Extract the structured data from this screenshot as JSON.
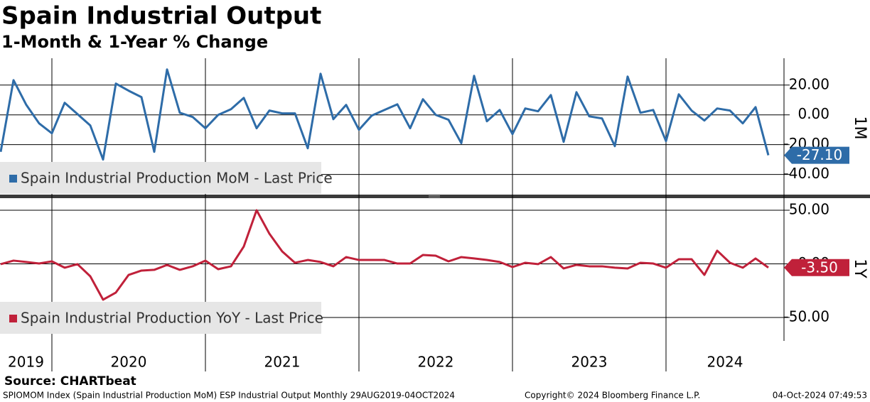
{
  "title": "Spain Industrial Output",
  "subtitle": "1-Month & 1-Year % Change",
  "source": "Source: CHARTbeat",
  "footer": {
    "left": "SPIOMOM Index (Spain Industrial Production MoM) ESP Industrial Output  Monthly 29AUG2019-04OCT2024",
    "center": "Copyright© 2024 Bloomberg Finance L.P.",
    "right": "04-Oct-2024 07:49:53"
  },
  "chart_data": [
    {
      "type": "line",
      "panel_label": "1M",
      "x": [
        "2019-08",
        "2019-09",
        "2019-10",
        "2019-11",
        "2019-12",
        "2020-01",
        "2020-02",
        "2020-03",
        "2020-04",
        "2020-05",
        "2020-06",
        "2020-07",
        "2020-08",
        "2020-09",
        "2020-10",
        "2020-11",
        "2020-12",
        "2021-01",
        "2021-02",
        "2021-03",
        "2021-04",
        "2021-05",
        "2021-06",
        "2021-07",
        "2021-08",
        "2021-09",
        "2021-10",
        "2021-11",
        "2021-12",
        "2022-01",
        "2022-02",
        "2022-03",
        "2022-04",
        "2022-05",
        "2022-06",
        "2022-07",
        "2022-08",
        "2022-09",
        "2022-10",
        "2022-11",
        "2022-12",
        "2023-01",
        "2023-02",
        "2023-03",
        "2023-04",
        "2023-05",
        "2023-06",
        "2023-07",
        "2023-08",
        "2023-09",
        "2023-10",
        "2023-11",
        "2023-12",
        "2024-01",
        "2024-02",
        "2024-03",
        "2024-04",
        "2024-05",
        "2024-06",
        "2024-07",
        "2024-08"
      ],
      "series": [
        {
          "name": "Spain Industrial Production MoM - Last Price",
          "color": "#2e6ca8",
          "last_label": "-27.10",
          "values": [
            -24.8,
            23.3,
            6.7,
            -5.7,
            -12.4,
            8.1,
            0.5,
            -7.1,
            -30,
            21,
            16.2,
            11.9,
            -24.8,
            30.5,
            1.4,
            -1.4,
            -9,
            0,
            3.8,
            11.4,
            -9,
            2.9,
            1,
            1,
            -22.4,
            27.6,
            -2.9,
            6.7,
            -10,
            -0.5,
            3.3,
            7.1,
            -9,
            10.5,
            0,
            -3.3,
            -19,
            26.2,
            -4.3,
            3.3,
            -12.9,
            4.3,
            2.4,
            13.3,
            -18.1,
            15.2,
            -1,
            -2.4,
            -21,
            25.7,
            1.4,
            3.3,
            -17.6,
            13.8,
            2.9,
            -3.8,
            4.3,
            2.9,
            -5.7,
            5.2,
            -27.1
          ]
        }
      ],
      "ylim": [
        -54,
        38
      ],
      "yticks": [
        {
          "value": 20,
          "label": "20.00"
        },
        {
          "value": 0,
          "label": "0.00"
        },
        {
          "value": -20,
          "label": "-20.00"
        },
        {
          "value": -40,
          "label": "-40.00"
        }
      ],
      "grid": true
    },
    {
      "type": "line",
      "panel_label": "1Y",
      "x": [
        "2019-08",
        "2019-09",
        "2019-10",
        "2019-11",
        "2019-12",
        "2020-01",
        "2020-02",
        "2020-03",
        "2020-04",
        "2020-05",
        "2020-06",
        "2020-07",
        "2020-08",
        "2020-09",
        "2020-10",
        "2020-11",
        "2020-12",
        "2021-01",
        "2021-02",
        "2021-03",
        "2021-04",
        "2021-05",
        "2021-06",
        "2021-07",
        "2021-08",
        "2021-09",
        "2021-10",
        "2021-11",
        "2021-12",
        "2022-01",
        "2022-02",
        "2022-03",
        "2022-04",
        "2022-05",
        "2022-06",
        "2022-07",
        "2022-08",
        "2022-09",
        "2022-10",
        "2022-11",
        "2022-12",
        "2023-01",
        "2023-02",
        "2023-03",
        "2023-04",
        "2023-05",
        "2023-06",
        "2023-07",
        "2023-08",
        "2023-09",
        "2023-10",
        "2023-11",
        "2023-12",
        "2024-01",
        "2024-02",
        "2024-03",
        "2024-04",
        "2024-05",
        "2024-06",
        "2024-07",
        "2024-08"
      ],
      "series": [
        {
          "name": "Spain Industrial Production YoY - Last Price",
          "color": "#c0213a",
          "last_label": "-3.50",
          "values": [
            -0.3,
            3,
            1.7,
            0.3,
            2.3,
            -3.6,
            -0.3,
            -11.6,
            -33.4,
            -26.8,
            -10.3,
            -6.3,
            -5.6,
            -1,
            -5.6,
            -2.3,
            3,
            -5,
            -2.3,
            16.2,
            50,
            28.1,
            11.6,
            1,
            3.6,
            1.7,
            -2.3,
            6.3,
            3.6,
            3.6,
            3.6,
            0.3,
            0.3,
            8.3,
            7.6,
            2.3,
            6.3,
            5,
            3.6,
            1.7,
            -3,
            1,
            -0.3,
            6.3,
            -4.3,
            -1,
            -2.3,
            -2.3,
            -3.6,
            -4.3,
            1,
            0.3,
            -3.6,
            4.3,
            4.3,
            -10.3,
            12.3,
            1,
            -3.6,
            5,
            -3.5
          ]
        }
      ],
      "ylim": [
        -66.6,
        60.6
      ],
      "yticks": [
        {
          "value": 50,
          "label": "50.00"
        },
        {
          "value": 0,
          "label": "0.00"
        },
        {
          "value": -50,
          "label": "-50.00"
        }
      ],
      "grid": true,
      "year_labels": [
        "2019",
        "2020",
        "2021",
        "2022",
        "2023",
        "2024"
      ]
    }
  ]
}
